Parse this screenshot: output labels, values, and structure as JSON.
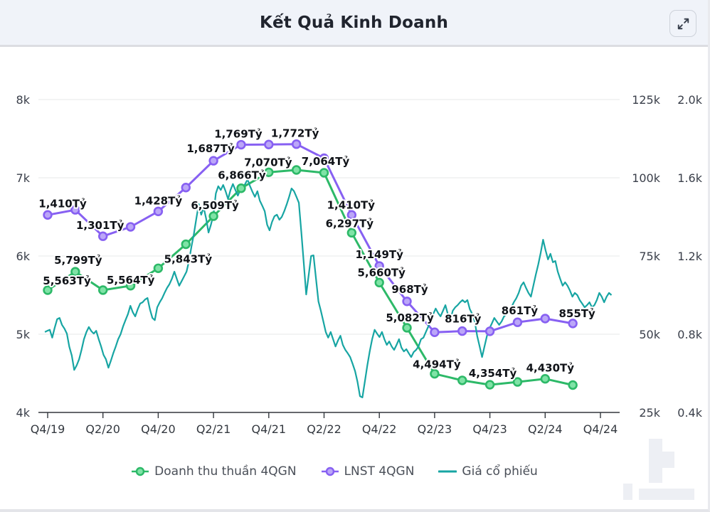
{
  "header": {
    "title": "Kết Quả Kinh Doanh",
    "expand_icon": "expand-diagonal-arrows"
  },
  "legend": {
    "items": [
      "Doanh thu thuần 4QGN",
      "LNST 4QGN",
      "Giá cổ phiếu"
    ]
  },
  "chart_data": {
    "type": "line",
    "title": "Kết Quả Kinh Doanh",
    "grid": "horizontal",
    "legend_position": "bottom",
    "x_tick_labels": [
      "Q4/19",
      "Q2/20",
      "Q4/20",
      "Q2/21",
      "Q4/21",
      "Q2/22",
      "Q4/22",
      "Q2/23",
      "Q4/23",
      "Q2/24",
      "Q4/24"
    ],
    "quarters": [
      "Q4/19",
      "Q1/20",
      "Q2/20",
      "Q3/20",
      "Q4/20",
      "Q1/21",
      "Q2/21",
      "Q3/21",
      "Q4/21",
      "Q1/22",
      "Q2/22",
      "Q3/22",
      "Q4/22",
      "Q1/23",
      "Q2/23",
      "Q3/23",
      "Q4/23",
      "Q1/24",
      "Q2/24",
      "Q3/24"
    ],
    "axis_left": {
      "ticks": [
        "8k",
        "7k",
        "6k",
        "5k",
        "4k"
      ],
      "tick_values": [
        8000,
        7000,
        6000,
        5000,
        4000
      ],
      "range": [
        4000,
        8000
      ]
    },
    "axis_right_price": {
      "ticks": [
        "125k",
        "100k",
        "75k",
        "50k",
        "25k"
      ],
      "tick_values": [
        125,
        100,
        75,
        50,
        25
      ],
      "range": [
        25,
        125
      ]
    },
    "axis_right_profit": {
      "ticks": [
        "2.0k",
        "1.6k",
        "1.2k",
        "0.8k",
        "0.4k"
      ],
      "tick_values": [
        2000,
        1600,
        1200,
        800,
        400
      ],
      "range": [
        400,
        2000
      ]
    },
    "series": [
      {
        "name": "Doanh thu thuần 4QGN",
        "axis": "left",
        "unit": "Tỷ",
        "color": "#2db968",
        "marker_fill": "#7fe3a6",
        "values": [
          5563,
          5799,
          5564,
          5620,
          5843,
          6150,
          6509,
          6866,
          7070,
          7100,
          7064,
          6297,
          5660,
          5082,
          4494,
          4410,
          4354,
          4390,
          4430,
          4350
        ],
        "point_labels": [
          {
            "i": 0,
            "text": "5,563Tỷ",
            "dx": 27,
            "dy": -8
          },
          {
            "i": 1,
            "text": "5,799Tỷ",
            "dx": 4,
            "dy": -11
          },
          {
            "i": 2,
            "text": "5,564Tỷ",
            "dx": 39,
            "dy": -9
          },
          {
            "i": 4,
            "text": "5,843Tỷ",
            "dx": 42,
            "dy": -8
          },
          {
            "i": 6,
            "text": "6,509Tỷ",
            "dx": 2,
            "dy": -10
          },
          {
            "i": 7,
            "text": "6,866Tỷ",
            "dx": 1,
            "dy": -13
          },
          {
            "i": 8,
            "text": "7,070Tỷ",
            "dx": -1,
            "dy": -9
          },
          {
            "i": 10,
            "text": "7,064Tỷ",
            "dx": 2,
            "dy": -11
          },
          {
            "i": 11,
            "text": "6,297Tỷ",
            "dx": -3,
            "dy": -8
          },
          {
            "i": 12,
            "text": "5,660Tỷ",
            "dx": 3,
            "dy": -9
          },
          {
            "i": 13,
            "text": "5,082Tỷ",
            "dx": 4,
            "dy": -9
          },
          {
            "i": 14,
            "text": "4,494Tỷ",
            "dx": 3,
            "dy": -8
          },
          {
            "i": 16,
            "text": "4,354Tỷ",
            "dx": 4,
            "dy": -11
          },
          {
            "i": 18,
            "text": "4,430Tỷ",
            "dx": 7,
            "dy": -10
          }
        ]
      },
      {
        "name": "LNST 4QGN",
        "axis": "right_profit",
        "unit": "Tỷ",
        "color": "#8760f2",
        "marker_fill": "#bba6f8",
        "values": [
          1410,
          1436,
          1301,
          1349,
          1428,
          1550,
          1687,
          1769,
          1770,
          1772,
          1700,
          1410,
          1149,
          968,
          810,
          816,
          815,
          861,
          880,
          855
        ],
        "point_labels": [
          {
            "i": 0,
            "text": "1,410Tỷ",
            "dx": 21,
            "dy": -11
          },
          {
            "i": 2,
            "text": "1,301Tỷ",
            "dx": -4,
            "dy": -10
          },
          {
            "i": 4,
            "text": "1,428Tỷ",
            "dx": 0,
            "dy": -10
          },
          {
            "i": 6,
            "text": "1,687Tỷ",
            "dx": -4,
            "dy": -12
          },
          {
            "i": 7,
            "text": "1,769Tỷ",
            "dx": -4,
            "dy": -10
          },
          {
            "i": 9,
            "text": "1,772Tỷ",
            "dx": -2,
            "dy": -10
          },
          {
            "i": 11,
            "text": "1,410Tỷ",
            "dx": -1,
            "dy": -9
          },
          {
            "i": 12,
            "text": "1,149Tỷ",
            "dx": 0,
            "dy": -11
          },
          {
            "i": 13,
            "text": "968Tỷ",
            "dx": 4,
            "dy": -12
          },
          {
            "i": 15,
            "text": "816Tỷ",
            "dx": 1,
            "dy": -12
          },
          {
            "i": 17,
            "text": "861Tỷ",
            "dx": 3,
            "dy": -11
          },
          {
            "i": 19,
            "text": "855Tỷ",
            "dx": 6,
            "dy": -9
          }
        ]
      },
      {
        "name": "Giá cổ phiếu",
        "axis": "right_price",
        "unit": "k",
        "color": "#17a5a3",
        "path": {
          "q_start": -0.1,
          "q_end": 20.4,
          "prices_k": [
            50.7,
            51.1,
            51.4,
            48.9,
            52.0,
            54.8,
            55.2,
            53.0,
            51.8,
            50.2,
            46.0,
            43.2,
            38.6,
            40.0,
            42.0,
            45.0,
            48.4,
            50.7,
            52.3,
            51.0,
            50.2,
            51.1,
            48.5,
            46.1,
            43.4,
            42.0,
            39.3,
            41.5,
            43.9,
            46.1,
            48.4,
            50.0,
            52.5,
            54.5,
            56.4,
            59.1,
            57.0,
            55.7,
            58.0,
            59.8,
            60.2,
            61.1,
            61.6,
            58.0,
            55.2,
            54.5,
            58.6,
            60.2,
            61.5,
            63.2,
            64.8,
            66.0,
            67.7,
            70.0,
            67.7,
            65.5,
            67.0,
            68.5,
            70.0,
            73.4,
            78.0,
            82.0,
            87.0,
            91.6,
            88.2,
            90.5,
            87.0,
            82.5,
            85.0,
            88.2,
            95.0,
            97.3,
            96.1,
            97.7,
            95.7,
            93.2,
            96.1,
            98.0,
            96.1,
            94.3,
            96.1,
            97.0,
            98.0,
            99.5,
            97.3,
            95.5,
            93.9,
            95.7,
            92.7,
            91.1,
            89.3,
            85.0,
            83.2,
            85.9,
            87.7,
            88.2,
            86.6,
            87.5,
            89.3,
            91.5,
            93.9,
            96.6,
            95.7,
            93.9,
            92.0,
            82.5,
            72.7,
            62.7,
            68.9,
            75.0,
            75.2,
            67.7,
            60.5,
            57.5,
            54.1,
            50.7,
            48.9,
            50.7,
            48.4,
            46.1,
            48.0,
            49.5,
            46.6,
            45.0,
            43.9,
            42.7,
            40.5,
            38.2,
            34.8,
            30.2,
            29.8,
            34.8,
            40.0,
            44.5,
            48.4,
            51.4,
            50.2,
            49.1,
            50.7,
            48.4,
            46.6,
            47.7,
            46.1,
            45.0,
            46.6,
            48.4,
            45.7,
            44.5,
            45.2,
            43.9,
            42.7,
            44.3,
            45.0,
            46.1,
            48.4,
            48.9,
            50.7,
            52.5,
            54.1,
            56.4,
            58.2,
            56.8,
            55.7,
            57.5,
            59.3,
            56.4,
            54.5,
            57.5,
            58.6,
            59.3,
            60.2,
            60.9,
            60.2,
            60.9,
            58.0,
            56.4,
            54.1,
            49.5,
            46.1,
            42.7,
            46.1,
            49.5,
            51.8,
            53.4,
            55.2,
            54.1,
            53.0,
            54.1,
            55.7,
            56.4,
            57.0,
            58.6,
            60.2,
            61.5,
            63.2,
            65.5,
            66.6,
            64.8,
            63.2,
            62.0,
            65.5,
            69.0,
            72.3,
            76.0,
            80.2,
            76.8,
            73.9,
            75.7,
            73.0,
            73.4,
            70.0,
            67.7,
            65.5,
            66.6,
            65.5,
            63.9,
            62.0,
            63.2,
            62.5,
            60.9,
            59.8,
            58.6,
            59.3,
            60.2,
            58.6,
            59.3,
            60.9,
            63.2,
            62.0,
            60.2,
            62.0,
            63.2,
            62.5
          ]
        }
      }
    ]
  },
  "style": {
    "grid_color": "#e7e8ea",
    "axis_line_color": "#33373d",
    "label_color": "#101318",
    "header_bg": "#f0f3f9"
  }
}
